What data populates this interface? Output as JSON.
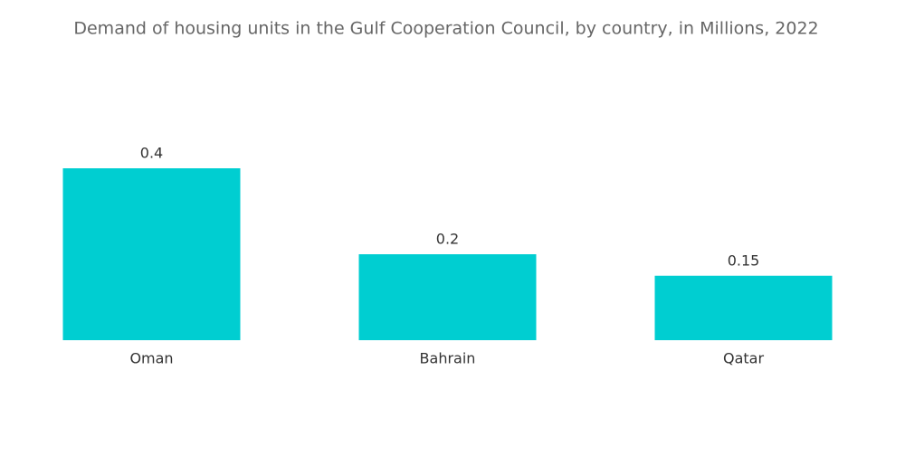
{
  "chart_data": {
    "type": "bar",
    "title": "Demand of housing units in the Gulf Cooperation Council, by country, in Millions, 2022",
    "categories": [
      "Oman",
      "Bahrain",
      "Qatar"
    ],
    "values": [
      0.4,
      0.2,
      0.15
    ],
    "color": "#00ced1"
  }
}
